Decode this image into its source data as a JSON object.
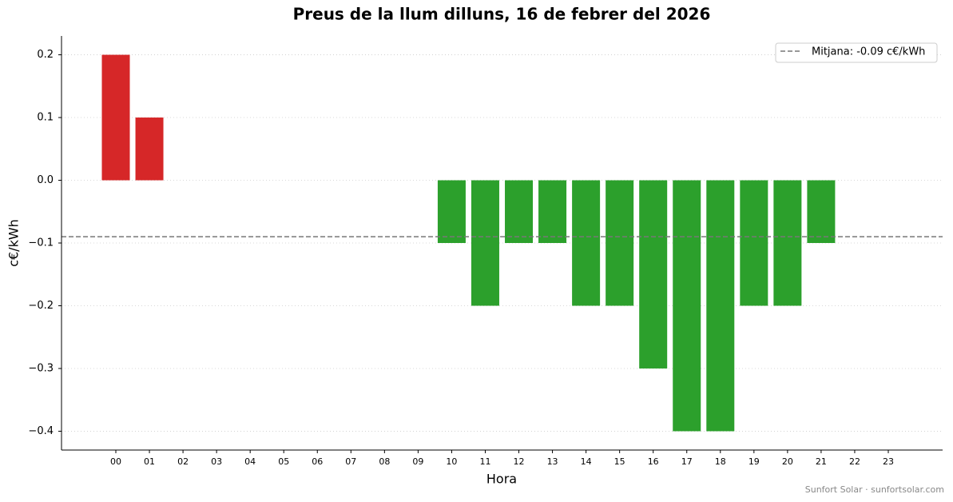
{
  "chart_data": {
    "type": "bar",
    "title": "Preus de la llum dilluns, 16 de febrer del 2026",
    "xlabel": "Hora",
    "ylabel": "c€/kWh",
    "categories": [
      "00",
      "01",
      "02",
      "03",
      "04",
      "05",
      "06",
      "07",
      "08",
      "09",
      "10",
      "11",
      "12",
      "13",
      "14",
      "15",
      "16",
      "17",
      "18",
      "19",
      "20",
      "21",
      "22",
      "23"
    ],
    "values": [
      0.2,
      0.1,
      0,
      0,
      0,
      0,
      0,
      0,
      0,
      0,
      -0.1,
      -0.2,
      -0.1,
      -0.1,
      -0.2,
      -0.2,
      -0.3,
      -0.4,
      -0.4,
      -0.2,
      -0.2,
      -0.1,
      0,
      0
    ],
    "positive_color": "#d62728",
    "negative_color": "#2ca02c",
    "ylim": [
      -0.43,
      0.23
    ],
    "yticks": [
      {
        "value": -0.4,
        "label": "−0.4"
      },
      {
        "value": -0.3,
        "label": "−0.3"
      },
      {
        "value": -0.2,
        "label": "−0.2"
      },
      {
        "value": -0.1,
        "label": "−0.1"
      },
      {
        "value": 0,
        "label": "0.0"
      },
      0.1,
      0.2
    ],
    "grid": true,
    "mean_line": {
      "value": -0.09,
      "label": "Mitjana: -0.09 c€/kWh",
      "color": "#777777"
    },
    "legend": "upper right",
    "footer": "Sunfort Solar · sunfortsolar.com"
  }
}
